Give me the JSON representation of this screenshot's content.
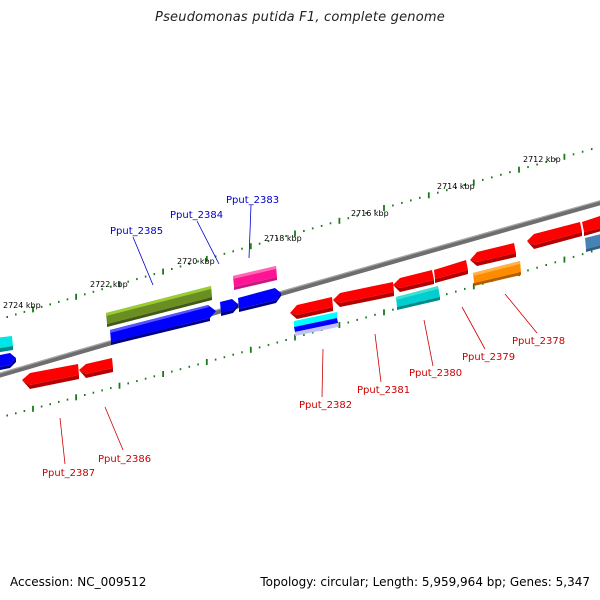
{
  "title": "Pseudomonas putida F1, complete genome",
  "footer": {
    "accession": "Accession: NC_009512",
    "summary": "Topology: circular; Length: 5,959,964 bp; Genes: 5,347"
  },
  "colors": {
    "backbone": "#808080",
    "tick": "#1a7a1a",
    "forward_label": "#0000cc",
    "reverse_label": "#cc0000",
    "red": "#ff0000",
    "blue": "#0000ff",
    "olive": "#6b8e23",
    "magenta": "#ff1493",
    "cyan": "#00ced1",
    "orange": "#ff8c00",
    "steelblue": "#4682b4"
  },
  "scale_labels": [
    "2712 kbp",
    "2714 kbp",
    "2716 kbp",
    "2718 kbp",
    "2720 kbp",
    "2722 kbp",
    "2724 kbp"
  ],
  "gene_labels": {
    "forward": [
      "Pput_2383",
      "Pput_2384",
      "Pput_2385"
    ],
    "reverse": [
      "Pput_2378",
      "Pput_2379",
      "Pput_2380",
      "Pput_2381",
      "Pput_2382",
      "Pput_2386",
      "Pput_2387"
    ]
  }
}
